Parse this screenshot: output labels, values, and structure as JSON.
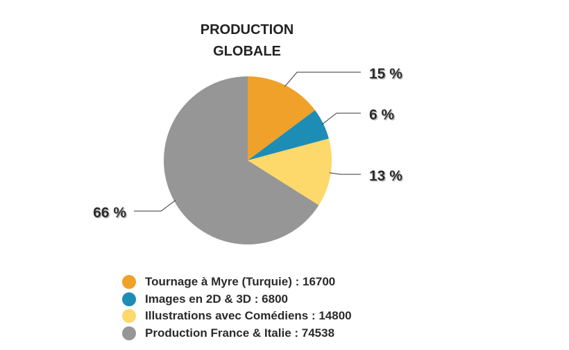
{
  "chart_data": {
    "type": "pie",
    "title_lines": [
      "PRODUCTION",
      "GLOBALE"
    ],
    "slices": [
      {
        "name": "Tournage à Myre (Turquie)",
        "value": 16700,
        "label": "15 %",
        "color": "#F0A12A"
      },
      {
        "name": "Images en 2D & 3D",
        "value": 6800,
        "label": "6 %",
        "color": "#1E8DB5"
      },
      {
        "name": "Illustrations avec Comédiens",
        "value": 14800,
        "label": "13 %",
        "color": "#FDD86A"
      },
      {
        "name": "Production France & Italie",
        "value": 74538,
        "label": "66 %",
        "color": "#969696"
      }
    ],
    "legend": [
      {
        "text": "Tournage à Myre (Turquie) : 16700",
        "color": "#F0A12A"
      },
      {
        "text": "Images en 2D & 3D : 6800",
        "color": "#1E8DB5"
      },
      {
        "text": "Illustrations avec Comédiens : 14800",
        "color": "#FDD86A"
      },
      {
        "text": "Production France & Italie : 74538",
        "color": "#969696"
      }
    ],
    "legend_position": "bottom"
  }
}
